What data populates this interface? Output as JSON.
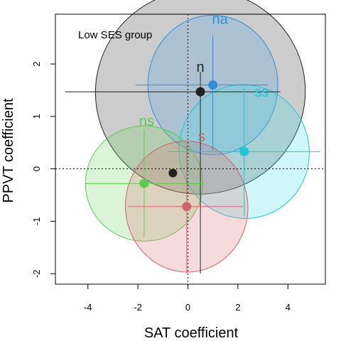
{
  "chart_data": {
    "type": "scatter",
    "title": "",
    "annotation": "Low SES group",
    "xlabel": "SAT coefficient",
    "ylabel": "PPVT coefficient",
    "xlim": [
      -5.3,
      5.5
    ],
    "ylim": [
      -2.2,
      2.95
    ],
    "x_ticks": [
      -4,
      -2,
      0,
      2,
      4
    ],
    "y_ticks": [
      -2,
      -1,
      0,
      1,
      2
    ],
    "x_tick_labels": [
      "-4",
      "-2",
      "0",
      "2",
      "4"
    ],
    "y_tick_labels": [
      "-2",
      "-1",
      "0",
      "1",
      "2"
    ],
    "reference_lines": {
      "x": 0,
      "y": 0,
      "style": "dotted"
    },
    "grand_mean": {
      "x": -0.6,
      "y": -0.08,
      "label": "",
      "color": "#222222"
    },
    "groups": [
      {
        "label": "n",
        "x": 0.5,
        "y": 1.47,
        "rx": 4.2,
        "ry": 1.95,
        "angle": 8,
        "color": "#222222",
        "fill": "#333333",
        "ci_x": [
          -4.9,
          3.7
        ],
        "ci_y": [
          -2.0,
          1.85
        ]
      },
      {
        "label": "na",
        "x": 1.0,
        "y": 1.6,
        "rx": 2.6,
        "ry": 1.33,
        "angle": 2,
        "color": "#2b8fdc",
        "fill": "#4aa3e6",
        "ci_x": [
          -2.1,
          3.2
        ],
        "ci_y": [
          0.35,
          2.55
        ]
      },
      {
        "label": "ss",
        "x": 2.25,
        "y": 0.33,
        "rx": 2.6,
        "ry": 1.28,
        "angle": 18,
        "color": "#22c6d4",
        "fill": "#40e0e6",
        "ci_x": [
          -0.8,
          5.3
        ],
        "ci_y": [
          -0.9,
          1.55
        ]
      },
      {
        "label": "ns",
        "x": -1.75,
        "y": -0.28,
        "rx": 2.35,
        "ry": 1.1,
        "angle": 0,
        "color": "#59cc4f",
        "fill": "#6fd35f",
        "ci_x": [
          -4.1,
          0.6
        ],
        "ci_y": [
          -1.3,
          0.75
        ]
      },
      {
        "label": "s",
        "x": -0.05,
        "y": -0.72,
        "rx": 2.45,
        "ry": 1.25,
        "angle": 5,
        "color": "#d1636a",
        "fill": "#dc6e73",
        "ci_x": [
          -2.4,
          2.2
        ],
        "ci_y": [
          -2.0,
          0.45
        ]
      }
    ]
  }
}
